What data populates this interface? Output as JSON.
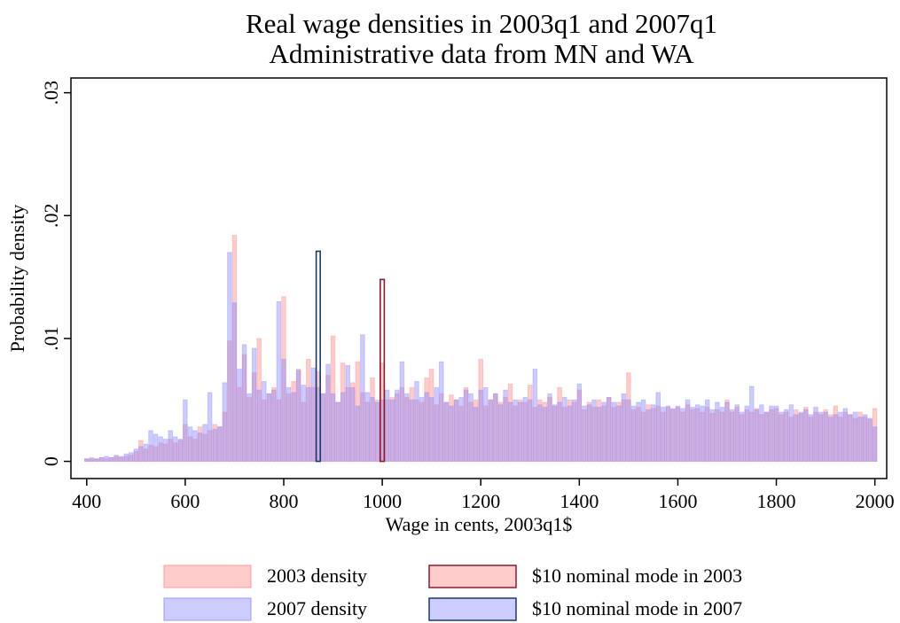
{
  "chart_data": {
    "type": "histogram",
    "title": "Real wage densities in 2003q1 and 2007q1",
    "subtitle": "Administrative data from MN and WA",
    "x_label": "Wage in cents, 2003q1$",
    "y_label": "Probability density",
    "xlim": [
      368,
      2024
    ],
    "ylim": [
      -0.0014,
      0.0312
    ],
    "xticks": [
      400,
      600,
      800,
      1000,
      1200,
      1400,
      1600,
      1800,
      2000
    ],
    "yticks": [
      0,
      {
        "value": 0.01,
        "label": ".01"
      },
      {
        "value": 0.02,
        "label": ".02"
      },
      {
        "value": 0.03,
        "label": ".03"
      }
    ],
    "x": [
      400,
      410,
      420,
      430,
      440,
      450,
      460,
      470,
      480,
      490,
      500,
      510,
      520,
      530,
      540,
      550,
      560,
      570,
      580,
      590,
      600,
      610,
      620,
      630,
      640,
      650,
      660,
      670,
      680,
      690,
      700,
      710,
      720,
      730,
      740,
      750,
      760,
      770,
      780,
      790,
      800,
      810,
      820,
      830,
      840,
      850,
      860,
      870,
      880,
      890,
      900,
      910,
      920,
      930,
      940,
      950,
      960,
      970,
      980,
      990,
      1000,
      1010,
      1020,
      1030,
      1040,
      1050,
      1060,
      1070,
      1080,
      1090,
      1100,
      1110,
      1120,
      1130,
      1140,
      1150,
      1160,
      1170,
      1180,
      1190,
      1200,
      1210,
      1220,
      1230,
      1240,
      1250,
      1260,
      1270,
      1280,
      1290,
      1300,
      1310,
      1320,
      1330,
      1340,
      1350,
      1360,
      1370,
      1380,
      1390,
      1400,
      1410,
      1420,
      1430,
      1440,
      1450,
      1460,
      1470,
      1480,
      1490,
      1500,
      1510,
      1520,
      1530,
      1540,
      1550,
      1560,
      1570,
      1580,
      1590,
      1600,
      1610,
      1620,
      1630,
      1640,
      1650,
      1660,
      1670,
      1680,
      1690,
      1700,
      1710,
      1720,
      1730,
      1740,
      1750,
      1760,
      1770,
      1780,
      1790,
      1800,
      1810,
      1820,
      1830,
      1840,
      1850,
      1860,
      1870,
      1880,
      1890,
      1900,
      1910,
      1920,
      1930,
      1940,
      1950,
      1960,
      1970,
      1980,
      1990,
      2000
    ],
    "series": [
      {
        "name": "2003 density",
        "color": "#ff8080",
        "values": [
          0.0002,
          0.0002,
          0.0002,
          0.0003,
          0.0002,
          0.0003,
          0.0004,
          0.0003,
          0.0004,
          0.0005,
          0.0008,
          0.0017,
          0.001,
          0.0013,
          0.0012,
          0.0015,
          0.0014,
          0.0018,
          0.0015,
          0.0017,
          0.003,
          0.002,
          0.0018,
          0.0028,
          0.0022,
          0.0025,
          0.003,
          0.0028,
          0.004,
          0.0098,
          0.0184,
          0.006,
          0.0087,
          0.0052,
          0.0072,
          0.01,
          0.005,
          0.0055,
          0.006,
          0.005,
          0.0134,
          0.0055,
          0.0065,
          0.0075,
          0.0048,
          0.0083,
          0.006,
          0.0073,
          0.0055,
          0.007,
          0.0102,
          0.0048,
          0.008,
          0.006,
          0.0064,
          0.0081,
          0.0056,
          0.0048,
          0.0068,
          0.005,
          0.008,
          0.005,
          0.0052,
          0.0055,
          0.006,
          0.0052,
          0.006,
          0.005,
          0.0048,
          0.0068,
          0.0075,
          0.0046,
          0.0055,
          0.0048,
          0.0054,
          0.005,
          0.0045,
          0.006,
          0.0048,
          0.005,
          0.0083,
          0.0045,
          0.005,
          0.0055,
          0.0048,
          0.0052,
          0.0063,
          0.0045,
          0.005,
          0.0048,
          0.0062,
          0.0044,
          0.005,
          0.0048,
          0.0052,
          0.0045,
          0.006,
          0.0044,
          0.005,
          0.0048,
          0.0058,
          0.0042,
          0.0048,
          0.0044,
          0.005,
          0.0045,
          0.0052,
          0.0044,
          0.0048,
          0.005,
          0.0072,
          0.0042,
          0.0044,
          0.004,
          0.0046,
          0.0043,
          0.0045,
          0.004,
          0.0044,
          0.0042,
          0.0044,
          0.004,
          0.0046,
          0.0042,
          0.0043,
          0.004,
          0.0044,
          0.0039,
          0.0042,
          0.004,
          0.005,
          0.004,
          0.0044,
          0.0038,
          0.0042,
          0.004,
          0.0043,
          0.0038,
          0.004,
          0.0042,
          0.0043,
          0.0038,
          0.004,
          0.0036,
          0.0042,
          0.0039,
          0.0044,
          0.0036,
          0.004,
          0.0038,
          0.0042,
          0.0038,
          0.0045,
          0.0036,
          0.004,
          0.0038,
          0.0035,
          0.004,
          0.0036,
          0.0034,
          0.0043
        ]
      },
      {
        "name": "2007 density",
        "color": "#8080ff",
        "values": [
          0.0002,
          0.0003,
          0.0002,
          0.0003,
          0.0004,
          0.0003,
          0.0005,
          0.0004,
          0.0006,
          0.0007,
          0.001,
          0.0012,
          0.0014,
          0.0025,
          0.0022,
          0.002,
          0.0018,
          0.0025,
          0.002,
          0.0018,
          0.005,
          0.0028,
          0.0025,
          0.0023,
          0.003,
          0.0056,
          0.0026,
          0.0028,
          0.0064,
          0.017,
          0.0129,
          0.0075,
          0.0095,
          0.0055,
          0.0092,
          0.0058,
          0.0065,
          0.0055,
          0.0058,
          0.013,
          0.0083,
          0.006,
          0.0056,
          0.0074,
          0.0062,
          0.006,
          0.0076,
          0.006,
          0.0055,
          0.0079,
          0.0055,
          0.0048,
          0.0056,
          0.0078,
          0.006,
          0.0045,
          0.0103,
          0.0056,
          0.0052,
          0.0048,
          0.005,
          0.0058,
          0.005,
          0.0058,
          0.0081,
          0.0055,
          0.005,
          0.0065,
          0.0052,
          0.0056,
          0.0052,
          0.006,
          0.0081,
          0.0048,
          0.0045,
          0.005,
          0.0052,
          0.0058,
          0.0055,
          0.0044,
          0.0058,
          0.006,
          0.005,
          0.0055,
          0.0046,
          0.0058,
          0.0048,
          0.005,
          0.0048,
          0.0052,
          0.005,
          0.0075,
          0.0046,
          0.0044,
          0.0055,
          0.0046,
          0.0048,
          0.0052,
          0.0045,
          0.005,
          0.0063,
          0.0045,
          0.0046,
          0.005,
          0.0044,
          0.0048,
          0.0052,
          0.0048,
          0.0045,
          0.0055,
          0.005,
          0.0045,
          0.0048,
          0.005,
          0.0042,
          0.0046,
          0.0056,
          0.0044,
          0.0045,
          0.0043,
          0.0045,
          0.0043,
          0.005,
          0.0044,
          0.0046,
          0.0045,
          0.005,
          0.0042,
          0.0048,
          0.0044,
          0.0048,
          0.0042,
          0.0046,
          0.004,
          0.0045,
          0.0061,
          0.0042,
          0.0046,
          0.004,
          0.0045,
          0.0045,
          0.004,
          0.0042,
          0.0046,
          0.0038,
          0.004,
          0.0042,
          0.0038,
          0.0044,
          0.004,
          0.004,
          0.0036,
          0.0038,
          0.004,
          0.0043,
          0.0038,
          0.004,
          0.0036,
          0.0038,
          0.0035,
          0.0028
        ]
      }
    ],
    "modes": [
      {
        "name": "$10 nominal mode in 2003",
        "color": "#8b1a2a",
        "x": 1000,
        "value": 0.0148
      },
      {
        "name": "$10 nominal mode in 2007",
        "color": "#1a3a6b",
        "x": 870,
        "value": 0.0171
      }
    ]
  }
}
